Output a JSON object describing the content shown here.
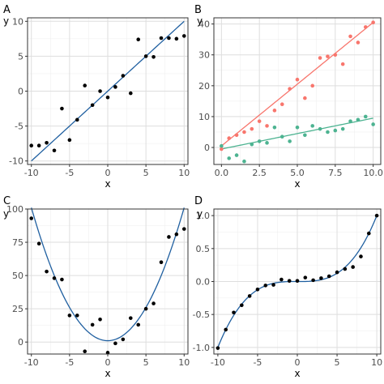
{
  "chart_data": [
    {
      "panel_label": "A",
      "type": "scatter",
      "xlabel": "x",
      "ylabel": "y",
      "xlim": [
        -10.5,
        10.5
      ],
      "ylim": [
        -10.5,
        10.5
      ],
      "xticks": [
        -10,
        -5,
        0,
        5,
        10
      ],
      "yticks": [
        -10,
        -5,
        0,
        5,
        10
      ],
      "grid": true,
      "series": [
        {
          "color": "#000000",
          "x": [
            -10,
            -9,
            -8,
            -7,
            -6,
            -5,
            -4,
            -3,
            -2,
            -1,
            0,
            1,
            2,
            3,
            4,
            5,
            6,
            7,
            8,
            9,
            10
          ],
          "y": [
            -7.8,
            -7.8,
            -7.4,
            -8.5,
            -2.5,
            -7.0,
            -4.1,
            0.8,
            -2.0,
            0.0,
            -0.9,
            0.6,
            2.2,
            -0.3,
            7.4,
            5.0,
            4.9,
            7.6,
            7.6,
            7.5,
            7.9
          ]
        }
      ],
      "fits": [
        {
          "type": "linear",
          "color": "#1f5fa0",
          "coef": [
            0.0,
            1.0
          ],
          "x_range": [
            -10,
            10
          ]
        }
      ]
    },
    {
      "panel_label": "B",
      "type": "scatter",
      "xlabel": "x",
      "ylabel": "y",
      "xlim": [
        -0.5,
        10.5
      ],
      "ylim": [
        -5.5,
        42
      ],
      "xticks": [
        0.0,
        2.5,
        5.0,
        7.5,
        10.0
      ],
      "xtick_labels": [
        "0.0",
        "2.5",
        "5.0",
        "7.5",
        "10.0"
      ],
      "yticks": [
        0,
        10,
        20,
        30,
        40
      ],
      "grid": true,
      "series": [
        {
          "color": "#f8766d",
          "x": [
            0.0,
            0.5,
            1.0,
            1.5,
            2.0,
            2.5,
            3.0,
            3.5,
            4.0,
            4.5,
            5.0,
            5.5,
            6.0,
            6.5,
            7.0,
            7.5,
            8.0,
            8.5,
            9.0,
            9.5,
            10.0
          ],
          "y": [
            -0.5,
            3.0,
            4.0,
            5.0,
            6.0,
            8.5,
            7.0,
            12.0,
            14.0,
            19.0,
            22.0,
            16.0,
            20.0,
            29.0,
            29.5,
            30.0,
            27.0,
            36.0,
            34.0,
            39.0,
            40.5
          ]
        },
        {
          "color": "#4db391",
          "x": [
            0.0,
            0.5,
            1.0,
            1.5,
            2.0,
            2.5,
            3.0,
            3.5,
            4.0,
            4.5,
            5.0,
            5.5,
            6.0,
            6.5,
            7.0,
            7.5,
            8.0,
            8.5,
            9.0,
            9.5,
            10.0
          ],
          "y": [
            0.5,
            -3.5,
            -2.5,
            -4.5,
            1.0,
            2.0,
            1.5,
            6.5,
            3.5,
            2.0,
            6.5,
            4.0,
            7.0,
            6.0,
            5.0,
            5.5,
            6.0,
            8.5,
            9.0,
            10.0,
            7.5
          ]
        }
      ],
      "fits": [
        {
          "type": "linear",
          "color": "#f8766d",
          "coef": [
            0.5,
            4.0
          ],
          "x_range": [
            0,
            10
          ]
        },
        {
          "type": "linear",
          "color": "#4db391",
          "coef": [
            -0.5,
            1.0
          ],
          "x_range": [
            0,
            10
          ]
        }
      ]
    },
    {
      "panel_label": "C",
      "type": "scatter",
      "xlabel": "x",
      "ylabel": "y",
      "xlim": [
        -10.5,
        10.5
      ],
      "ylim": [
        -9,
        100
      ],
      "xticks": [
        -10,
        -5,
        0,
        5,
        10
      ],
      "yticks": [
        0,
        25,
        50,
        75,
        100
      ],
      "grid": true,
      "series": [
        {
          "color": "#000000",
          "x": [
            -10,
            -9,
            -8,
            -7,
            -6,
            -5,
            -4,
            -3,
            -2,
            -1,
            0,
            1,
            2,
            3,
            4,
            5,
            6,
            7,
            8,
            9,
            10
          ],
          "y": [
            93,
            74,
            53,
            48,
            47,
            20,
            20,
            -7,
            13,
            17,
            -8,
            -1,
            2,
            18,
            13,
            25,
            29,
            60,
            79,
            81,
            85
          ]
        }
      ],
      "fits": [
        {
          "type": "polynomial",
          "color": "#1f5fa0",
          "coef": [
            1.0,
            0.0,
            1.0
          ],
          "x_range": [
            -10,
            10
          ]
        }
      ]
    },
    {
      "panel_label": "D",
      "type": "scatter",
      "xlabel": "x",
      "ylabel": "y",
      "xlim": [
        -10.5,
        10.5
      ],
      "ylim": [
        -1.1,
        1.1
      ],
      "xticks": [
        -10,
        -5,
        0,
        5,
        10
      ],
      "yticks": [
        -1.0,
        -0.5,
        0.0,
        0.5,
        1.0
      ],
      "ytick_labels": [
        "-1.0",
        "-0.5",
        "0.0",
        "0.5",
        "1.0"
      ],
      "grid": true,
      "series": [
        {
          "color": "#000000",
          "x": [
            -10,
            -9,
            -8,
            -7,
            -6,
            -5,
            -4,
            -3,
            -2,
            -1,
            0,
            1,
            2,
            3,
            4,
            5,
            6,
            7,
            8,
            9,
            10
          ],
          "y": [
            -1.01,
            -0.73,
            -0.47,
            -0.36,
            -0.22,
            -0.12,
            -0.06,
            -0.05,
            0.03,
            0.01,
            0.01,
            0.06,
            0.02,
            0.05,
            0.08,
            0.14,
            0.19,
            0.22,
            0.38,
            0.73,
            1.0
          ]
        }
      ],
      "fits": [
        {
          "type": "polynomial",
          "color": "#1f5fa0",
          "coef": [
            0.0,
            0.0,
            0.0,
            0.001
          ],
          "x_range": [
            -10,
            10
          ]
        }
      ]
    }
  ]
}
